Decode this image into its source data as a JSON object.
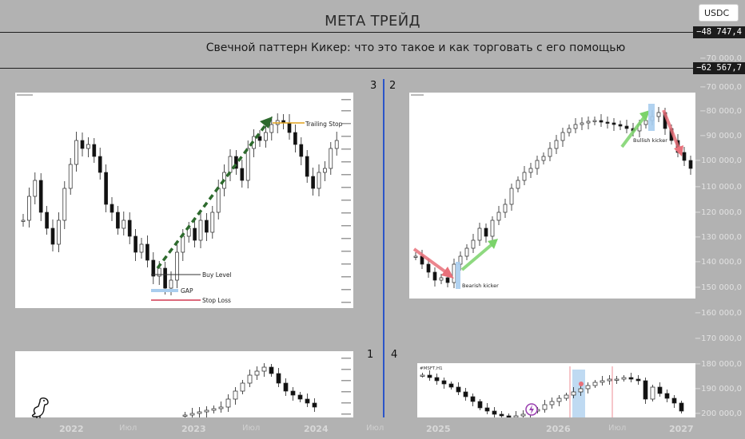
{
  "header": {
    "title": "МЕТА ТРЕЙД",
    "subtitle": "Свечной паттерн Кикер: что это такое и как торговать с его помощью",
    "symbol": "USDC"
  },
  "price_scale": {
    "tags": [
      "−48 747,4",
      "−62 567,7"
    ],
    "labels": [
      "−70 000,0",
      "−80 000,0",
      "−90 000,0",
      "−100 000,0",
      "−110 000,0",
      "−120 000,0",
      "−130 000,0",
      "−140 000,0",
      "−150 000,0",
      "−160 000,0",
      "−170 000,0",
      "−180 000,0",
      "−190 000,0",
      "−200 000,0"
    ]
  },
  "time_scale": {
    "labels": [
      "2022",
      "Июл",
      "2023",
      "Июл",
      "2024",
      "Июл",
      "2025",
      "2026",
      "Июл",
      "2027"
    ]
  },
  "panels": {
    "p1_number": "1",
    "p2_number": "2",
    "p3_number": "3",
    "p4_number": "4",
    "p3_annotations": {
      "trailing_stop": "Trailing Stop",
      "buy_level": "Buy Level",
      "gap": "GAP",
      "stop_loss": "Stop Loss"
    },
    "p2_annotations": {
      "bearish": "Bearish kicker",
      "bullish": "Bullish kicker"
    },
    "p4_ticker": "#MSFT,H1"
  },
  "colors": {
    "background": "#b2b2b2",
    "divider": "#2b55c8",
    "trend_arrow": "#2d6a2d",
    "bull_arrow": "#7bd36a",
    "bear_arrow": "#e8707a",
    "highlight": "#a9cdee",
    "stop_loss": "#c8102e",
    "trailing_stop": "#e0a21b"
  },
  "logo": "dino-icon"
}
